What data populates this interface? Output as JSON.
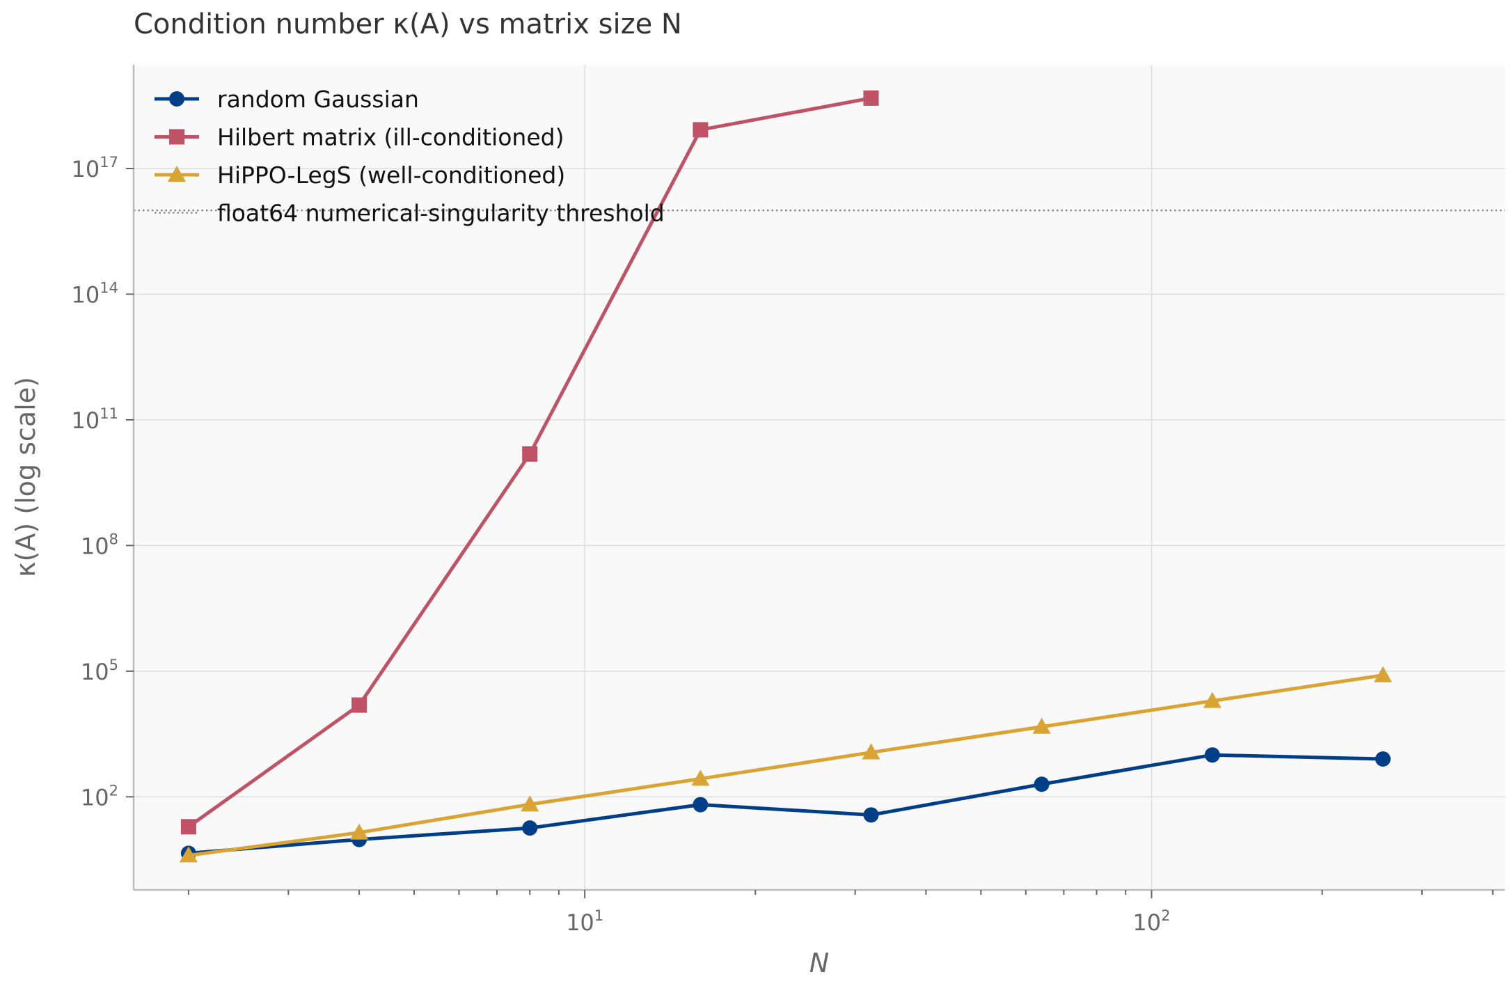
{
  "chart_data": {
    "type": "line",
    "title": "Condition number κ(A) vs matrix size N",
    "xlabel": "N",
    "ylabel": "κ(A) (log scale)",
    "xscale": "log",
    "yscale": "log",
    "xlim": [
      1.6,
      420
    ],
    "ylim": [
      0.6,
      3e+19
    ],
    "grid": true,
    "legend_position": "top-left",
    "x_ticks": [
      {
        "value": 10,
        "base": "10",
        "exp": "1"
      },
      {
        "value": 100,
        "base": "10",
        "exp": "2"
      }
    ],
    "y_ticks": [
      {
        "value": 100,
        "base": "10",
        "exp": "2"
      },
      {
        "value": 100000,
        "base": "10",
        "exp": "5"
      },
      {
        "value": 100000000,
        "base": "10",
        "exp": "8"
      },
      {
        "value": 100000000000,
        "base": "10",
        "exp": "11"
      },
      {
        "value": 100000000000000,
        "base": "10",
        "exp": "14"
      },
      {
        "value": 100000000000000000,
        "base": "10",
        "exp": "17"
      }
    ],
    "series": [
      {
        "name": "random Gaussian",
        "color": "#003f88",
        "marker": "circle",
        "x": [
          2,
          4,
          8,
          16,
          32,
          64,
          128,
          256
        ],
        "y": [
          4.5,
          9.6,
          18,
          65,
          37,
          200,
          1000,
          800
        ]
      },
      {
        "name": "Hilbert matrix (ill-conditioned)",
        "color": "#bf5264",
        "marker": "square",
        "x": [
          2,
          4,
          8,
          16,
          32
        ],
        "y": [
          19.3,
          15500,
          15300000000.0,
          8.4e+17,
          4.8e+18
        ]
      },
      {
        "name": "HiPPO-LegS (well-conditioned)",
        "color": "#d9a433",
        "marker": "triangle",
        "x": [
          2,
          4,
          8,
          16,
          32,
          64,
          128,
          256
        ],
        "y": [
          4,
          14,
          66,
          270,
          1150,
          4700,
          19500,
          80000
        ]
      },
      {
        "name": "float64 numerical-singularity threshold",
        "color": "#888888",
        "marker": "none",
        "style": "dotted",
        "y": 1e+16
      }
    ]
  }
}
